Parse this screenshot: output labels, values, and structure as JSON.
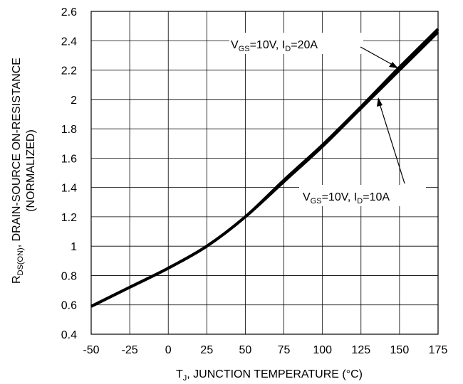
{
  "chart_data": {
    "type": "line",
    "xlabel": {
      "main": "T",
      "sub": "J",
      "rest": ", JUNCTION TEMPERATURE (°C)"
    },
    "ylabel": {
      "line1_main": "R",
      "line1_sub": "DS(ON)",
      "line1_rest": ", DRAIN-SOURCE ON-RESISTANCE",
      "line2": "(NORMALIZED)"
    },
    "xlim": [
      -50,
      175
    ],
    "ylim": [
      0.4,
      2.6
    ],
    "x_ticks": [
      "-50",
      "-25",
      "0",
      "25",
      "50",
      "75",
      "100",
      "125",
      "150",
      "175"
    ],
    "y_ticks": [
      "0.4",
      "0.6",
      "0.8",
      "1",
      "1.2",
      "1.4",
      "1.6",
      "1.8",
      "2",
      "2.2",
      "2.4",
      "2.6"
    ],
    "grid": true,
    "series": [
      {
        "x": [
          -50,
          -25,
          0,
          25,
          50,
          75,
          100,
          125,
          150,
          175
        ],
        "y": [
          0.59,
          0.72,
          0.85,
          1.0,
          1.2,
          1.44,
          1.68,
          1.94,
          2.2,
          2.46
        ]
      },
      {
        "x": [
          -50,
          -25,
          0,
          25,
          50,
          75,
          100,
          125,
          150,
          175
        ],
        "y": [
          0.59,
          0.72,
          0.85,
          1.0,
          1.2,
          1.45,
          1.69,
          1.95,
          2.22,
          2.48
        ]
      }
    ],
    "annotations": [
      {
        "v_main": "V",
        "v_sub": "GS",
        "v_val": "=10V, ",
        "i_main": "I",
        "i_sub": "D",
        "i_val": "=20A",
        "point": [
          152,
          2.22
        ]
      },
      {
        "v_main": "V",
        "v_sub": "GS",
        "v_val": "=10V, ",
        "i_main": "I",
        "i_sub": "D",
        "i_val": "=10A",
        "point": [
          120,
          1.98
        ]
      }
    ],
    "colors": {
      "line": "#000000",
      "grid": "#000000",
      "background": "#ffffff"
    }
  }
}
